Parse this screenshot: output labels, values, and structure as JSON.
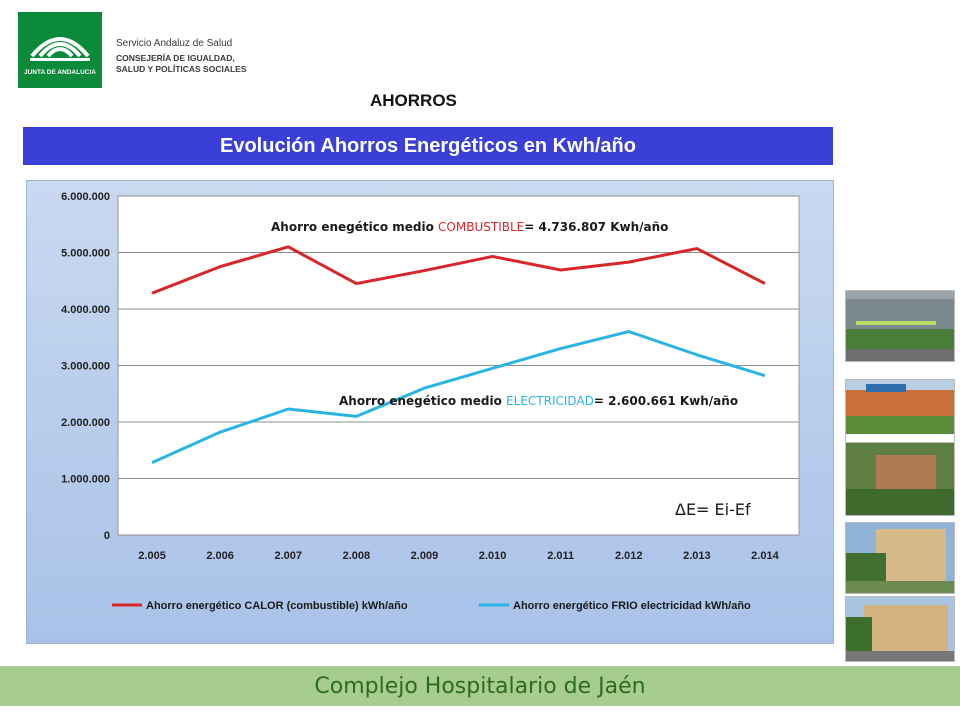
{
  "header": {
    "logo_caption": "JUNTA DE ANDALUCIA",
    "org_line1": "Servicio Andaluz de Salud",
    "org_line2": "CONSEJERÍA DE IGUALDAD,",
    "org_line3": "SALUD Y POLÍTICAS SOCIALES"
  },
  "section_title": "AHORROS",
  "banner_title": "Evolución Ahorros Energéticos en Kwh/año",
  "chart_data": {
    "type": "line",
    "categories": [
      "2.005",
      "2.006",
      "2.007",
      "2.008",
      "2.009",
      "2.010",
      "2.011",
      "2.012",
      "2.013",
      "2.014"
    ],
    "ylim": [
      0,
      6000000
    ],
    "yticks": [
      "0",
      "1.000.000",
      "2.000.000",
      "3.000.000",
      "4.000.000",
      "5.000.000",
      "6.000.000"
    ],
    "grid": true,
    "legend_position": "bottom",
    "series": [
      {
        "name": "Ahorro energético CALOR (combustible) kWh/año",
        "color": "#d9262b",
        "values": [
          4280000,
          4750000,
          5100000,
          4450000,
          4680000,
          4930000,
          4690000,
          4830000,
          5070000,
          4450000
        ]
      },
      {
        "name": "Ahorro energético FRIO electricidad kWh/año",
        "color": "#2ab4e6",
        "values": [
          1280000,
          1820000,
          2230000,
          2100000,
          2600000,
          2950000,
          3300000,
          3600000,
          3190000,
          2820000
        ]
      }
    ],
    "annotations": {
      "combustible": {
        "prefix": "Ahorro enegético  medio ",
        "highlight": "COMBUSTIBLE",
        "suffix": "= 4.736.807  Kwh/año"
      },
      "electricidad": {
        "prefix": "Ahorro enegético  medio ",
        "highlight": "ELECTRICIDAD",
        "suffix": "=  2.600.661  Kwh/año"
      },
      "formula": "ΔE=   Ei-Ef"
    }
  },
  "footer": {
    "text": "Complejo Hospitalario de Jaén"
  }
}
